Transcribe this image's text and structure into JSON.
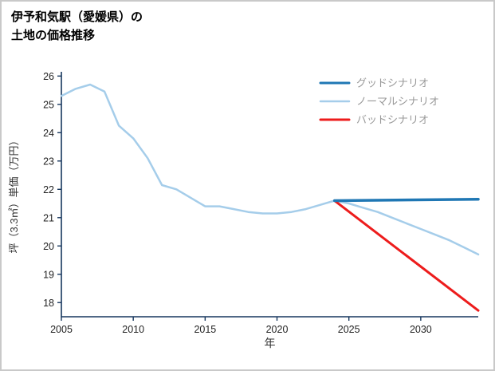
{
  "chart_data": {
    "type": "line",
    "title": "伊予和気駅（愛媛県）の土地の価格推移",
    "title_lines": [
      "伊予和気駅（愛媛県）の",
      "土地の価格推移"
    ],
    "xlabel": "年",
    "ylabel": "坪（3.3㎡）単価（万円）",
    "xlim": [
      2005,
      2034
    ],
    "ylim": [
      17.5,
      26.15
    ],
    "xticks": [
      2005,
      2010,
      2015,
      2020,
      2025,
      2030
    ],
    "yticks": [
      18,
      19,
      20,
      21,
      22,
      23,
      24,
      25,
      26
    ],
    "grid": false,
    "legend_position": "top-right-inside",
    "axis_color": "#17375e",
    "tick_label_color": "#222222",
    "axis_label_color": "#333333",
    "legend_text_color": "#999999",
    "legend": [
      "グッドシナリオ",
      "ノーマルシナリオ",
      "バッドシナリオ"
    ],
    "series": [
      {
        "name": "ノーマルシナリオ",
        "color": "#a5cdea",
        "width": 2.5,
        "x": [
          2005,
          2006,
          2007,
          2008,
          2009,
          2010,
          2011,
          2012,
          2013,
          2014,
          2015,
          2016,
          2017,
          2018,
          2019,
          2020,
          2021,
          2022,
          2023,
          2024,
          2025,
          2026,
          2027,
          2028,
          2029,
          2030,
          2031,
          2032,
          2033,
          2034
        ],
        "y": [
          25.3,
          25.55,
          25.7,
          25.45,
          24.25,
          23.8,
          23.1,
          22.15,
          22.0,
          21.7,
          21.4,
          21.4,
          21.3,
          21.2,
          21.15,
          21.15,
          21.2,
          21.3,
          21.45,
          21.6,
          21.5,
          21.35,
          21.2,
          21.0,
          20.8,
          20.6,
          20.4,
          20.2,
          19.95,
          19.7
        ]
      },
      {
        "name": "バッドシナリオ",
        "color": "#ed1c1c",
        "width": 3,
        "x": [
          2024,
          2034
        ],
        "y": [
          21.6,
          17.72
        ]
      },
      {
        "name": "グッドシナリオ",
        "color": "#1f77b4",
        "width": 3.5,
        "x": [
          2024,
          2034
        ],
        "y": [
          21.6,
          21.65
        ]
      }
    ]
  }
}
